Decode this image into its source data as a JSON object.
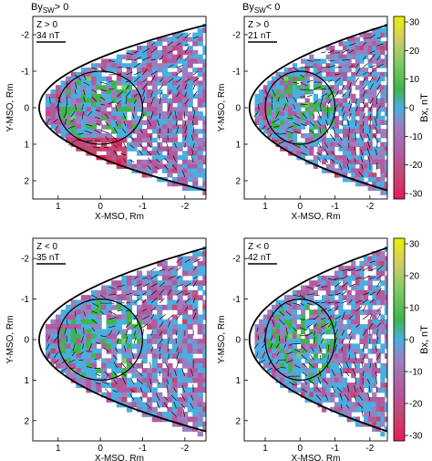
{
  "figure": {
    "column_headers": [
      {
        "main": "By",
        "sub": "SW",
        "rest": "> 0"
      },
      {
        "main": "By",
        "sub": "SW",
        "rest": "< 0"
      }
    ]
  },
  "colorbar": {
    "label": "Bx, nT",
    "range": [
      -30,
      30
    ],
    "ticks": [
      "30",
      "20",
      "10",
      "0",
      "-10",
      "-20",
      "-30"
    ],
    "stops": [
      "#e8f000",
      "#d6cd66",
      "#7fcc67",
      "#3fb54a",
      "#4aaee0",
      "#9c7fbf",
      "#b25aa0",
      "#c7456f",
      "#e8195a"
    ]
  },
  "chart_data": [
    {
      "type": "vector-map",
      "panel": "Z > 0, By_SW > 0",
      "region_label": "Z > 0",
      "ref_label": "34 nT",
      "xlabel": "X-MSO, Rm",
      "ylabel": "Y-MSO, Rm",
      "x_ticks": [
        "1",
        "0",
        "-1",
        "-2"
      ],
      "y_ticks": [
        "-2",
        "-1",
        "0",
        "1",
        "2"
      ],
      "xlim": [
        1.6,
        -2.5
      ],
      "ylim": [
        -2.5,
        2.5
      ],
      "planet_radius": 1.0
    },
    {
      "type": "vector-map",
      "panel": "Z > 0, By_SW < 0",
      "region_label": "Z > 0",
      "ref_label": "21 nT",
      "xlabel": "X-MSO, Rm",
      "ylabel": "Y-MSO, Rm",
      "x_ticks": [
        "1",
        "0",
        "-1",
        "-2"
      ],
      "y_ticks": [
        "-2",
        "-1",
        "0",
        "1",
        "2"
      ],
      "xlim": [
        1.6,
        -2.5
      ],
      "ylim": [
        -2.5,
        2.5
      ],
      "planet_radius": 1.0
    },
    {
      "type": "vector-map",
      "panel": "Z < 0, By_SW > 0",
      "region_label": "Z < 0",
      "ref_label": "35 nT",
      "xlabel": "X-MSO, Rm",
      "ylabel": "Y-MSO, Rm",
      "x_ticks": [
        "1",
        "0",
        "-1",
        "-2"
      ],
      "y_ticks": [
        "-2",
        "-1",
        "0",
        "1",
        "2"
      ],
      "xlim": [
        1.6,
        -2.5
      ],
      "ylim": [
        -2.5,
        2.5
      ],
      "planet_radius": 1.0
    },
    {
      "type": "vector-map",
      "panel": "Z < 0, By_SW < 0",
      "region_label": "Z < 0",
      "ref_label": "42 nT",
      "xlabel": "X-MSO, Rm",
      "ylabel": "Y-MSO, Rm",
      "x_ticks": [
        "1",
        "0",
        "-1",
        "-2"
      ],
      "y_ticks": [
        "-2",
        "-1",
        "0",
        "1",
        "2"
      ],
      "xlim": [
        1.6,
        -2.5
      ],
      "ylim": [
        -2.5,
        2.5
      ],
      "planet_radius": 1.0
    }
  ]
}
